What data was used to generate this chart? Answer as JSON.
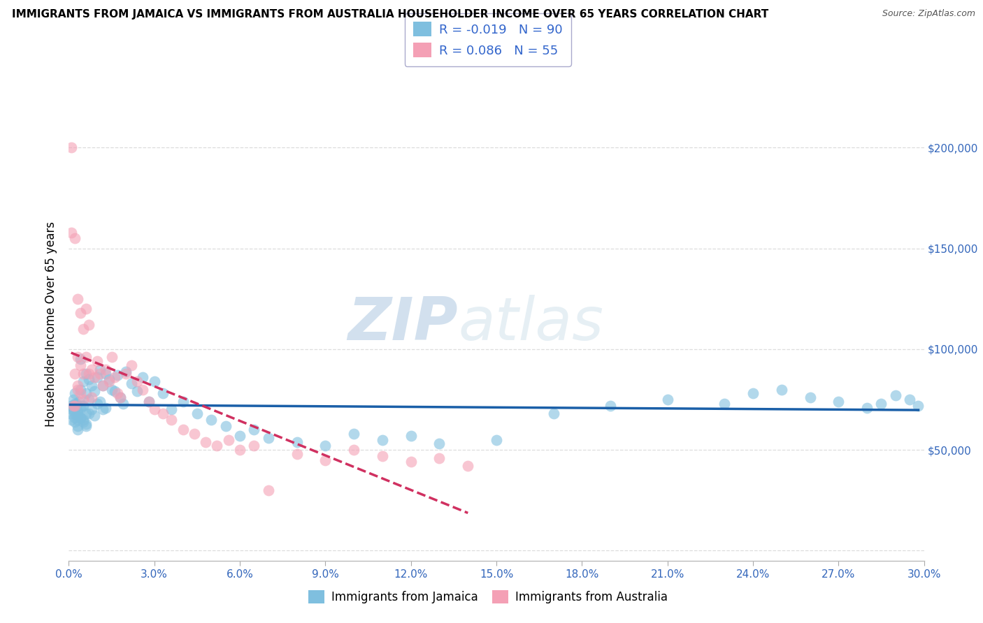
{
  "title": "IMMIGRANTS FROM JAMAICA VS IMMIGRANTS FROM AUSTRALIA HOUSEHOLDER INCOME OVER 65 YEARS CORRELATION CHART",
  "source": "Source: ZipAtlas.com",
  "ylabel": "Householder Income Over 65 years",
  "legend_jamaica": "Immigrants from Jamaica",
  "legend_australia": "Immigrants from Australia",
  "r_jamaica": -0.019,
  "n_jamaica": 90,
  "r_australia": 0.086,
  "n_australia": 55,
  "color_jamaica": "#7fbfdf",
  "color_australia": "#f4a0b5",
  "line_color_jamaica": "#1a5fa8",
  "line_color_australia": "#d03060",
  "watermark_zip": "ZIP",
  "watermark_atlas": "atlas",
  "xlim": [
    0.0,
    0.3
  ],
  "ylim": [
    -5000,
    230000
  ],
  "ytick_vals": [
    0,
    50000,
    100000,
    150000,
    200000
  ],
  "ytick_labels_right": [
    "",
    "$50,000",
    "$100,000",
    "$150,000",
    "$200,000"
  ],
  "jamaica_x": [
    0.0005,
    0.001,
    0.001,
    0.0015,
    0.0015,
    0.002,
    0.002,
    0.002,
    0.002,
    0.0025,
    0.003,
    0.003,
    0.003,
    0.003,
    0.003,
    0.0035,
    0.004,
    0.004,
    0.004,
    0.004,
    0.0045,
    0.005,
    0.005,
    0.005,
    0.006,
    0.006,
    0.006,
    0.006,
    0.007,
    0.007,
    0.007,
    0.008,
    0.008,
    0.009,
    0.009,
    0.01,
    0.01,
    0.011,
    0.011,
    0.012,
    0.012,
    0.013,
    0.013,
    0.014,
    0.015,
    0.016,
    0.017,
    0.018,
    0.019,
    0.02,
    0.022,
    0.024,
    0.026,
    0.028,
    0.03,
    0.033,
    0.036,
    0.04,
    0.045,
    0.05,
    0.055,
    0.06,
    0.065,
    0.07,
    0.08,
    0.09,
    0.1,
    0.11,
    0.12,
    0.13,
    0.15,
    0.17,
    0.19,
    0.21,
    0.23,
    0.24,
    0.25,
    0.26,
    0.27,
    0.28,
    0.285,
    0.29,
    0.295,
    0.298,
    0.001,
    0.002,
    0.003,
    0.004,
    0.005,
    0.006
  ],
  "jamaica_y": [
    68000,
    72000,
    65000,
    75000,
    70000,
    78000,
    68000,
    66000,
    64000,
    73000,
    69000,
    67000,
    65000,
    62000,
    60000,
    74000,
    95000,
    80000,
    71000,
    66000,
    72000,
    84000,
    72000,
    65000,
    88000,
    78000,
    68000,
    63000,
    85000,
    75000,
    68000,
    82000,
    70000,
    79000,
    67000,
    86000,
    73000,
    90000,
    74000,
    82000,
    70000,
    88000,
    71000,
    85000,
    80000,
    79000,
    87000,
    76000,
    73000,
    89000,
    83000,
    79000,
    86000,
    74000,
    84000,
    78000,
    70000,
    74000,
    68000,
    65000,
    62000,
    57000,
    60000,
    56000,
    54000,
    52000,
    58000,
    55000,
    57000,
    53000,
    55000,
    68000,
    72000,
    75000,
    73000,
    78000,
    80000,
    76000,
    74000,
    71000,
    73000,
    77000,
    75000,
    72000,
    70000,
    73000,
    68000,
    66000,
    64000,
    62000
  ],
  "australia_x": [
    0.0008,
    0.001,
    0.0015,
    0.002,
    0.002,
    0.003,
    0.003,
    0.003,
    0.004,
    0.004,
    0.005,
    0.005,
    0.005,
    0.006,
    0.006,
    0.007,
    0.007,
    0.008,
    0.008,
    0.009,
    0.01,
    0.011,
    0.012,
    0.013,
    0.014,
    0.015,
    0.016,
    0.017,
    0.018,
    0.02,
    0.022,
    0.024,
    0.026,
    0.028,
    0.03,
    0.033,
    0.036,
    0.04,
    0.044,
    0.048,
    0.052,
    0.056,
    0.06,
    0.065,
    0.07,
    0.08,
    0.09,
    0.1,
    0.11,
    0.12,
    0.13,
    0.14,
    0.002,
    0.003,
    0.004
  ],
  "australia_y": [
    200000,
    158000,
    72000,
    155000,
    88000,
    125000,
    96000,
    80000,
    118000,
    92000,
    110000,
    88000,
    75000,
    120000,
    96000,
    112000,
    88000,
    90000,
    76000,
    86000,
    94000,
    88000,
    82000,
    90000,
    84000,
    96000,
    86000,
    78000,
    76000,
    88000,
    92000,
    84000,
    80000,
    74000,
    70000,
    68000,
    65000,
    60000,
    58000,
    54000,
    52000,
    55000,
    50000,
    52000,
    30000,
    48000,
    45000,
    50000,
    47000,
    44000,
    46000,
    42000,
    72000,
    82000,
    78000
  ]
}
